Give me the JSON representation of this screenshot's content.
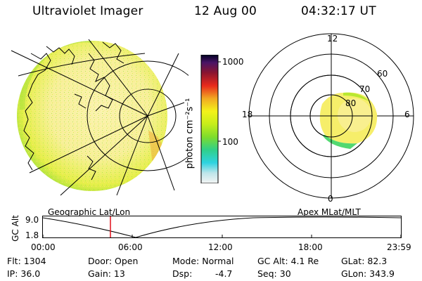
{
  "header": {
    "instrument": "Ultraviolet Imager",
    "date": "12 Aug 00",
    "time": "04:32:17 UT"
  },
  "colorbar": {
    "unit_label": "photon cm⁻²s⁻¹",
    "tick_1000": "1000",
    "tick_100": "100",
    "colors": [
      "#f4f4f4",
      "#bfe6ea",
      "#2ed3e0",
      "#2fd08a",
      "#7ddc2c",
      "#c6ee1a",
      "#f3f31a",
      "#f2a922",
      "#e82a1c",
      "#8a1530",
      "#4a1466",
      "#000022"
    ]
  },
  "left_panel": {
    "caption": "Geographic Lat/Lon"
  },
  "right_panel": {
    "caption": "Apex MLat/MLT",
    "mlt_labels": {
      "top": "12",
      "left": "18",
      "right": "6",
      "bottom": "0"
    },
    "mlat_labels": {
      "r60": "60",
      "r70": "70",
      "r80": "80"
    }
  },
  "altitude_plot": {
    "axis_label": "GC Alt",
    "y_top": "9.0",
    "y_bottom": "1.8",
    "x_ticks": [
      "00:00",
      "06:00",
      "12:00",
      "18:00",
      "23:59"
    ],
    "marker_time": "04:32:17"
  },
  "info": {
    "flt": "Flt: 1304",
    "ip": "IP: 36.0",
    "door": "Door: Open",
    "gain": "Gain: 13",
    "mode": "Mode: Normal",
    "dsp_label": "Dsp:",
    "dsp_value": "-4.7",
    "gc_alt": "GC Alt: 4.1 Re",
    "seq": "Seq: 30",
    "glat": "GLat: 82.3",
    "glon": "GLon: 343.9"
  }
}
